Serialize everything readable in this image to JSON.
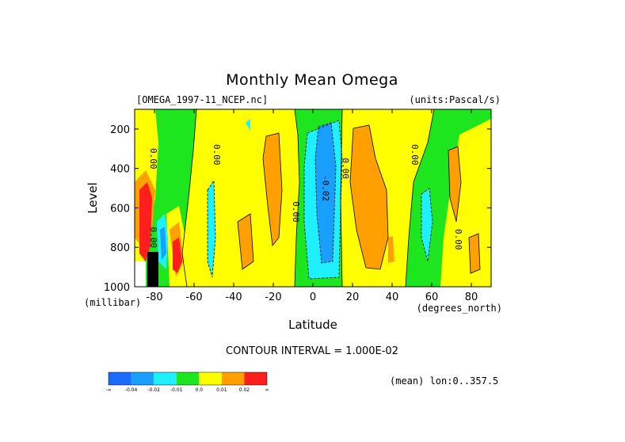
{
  "chart_data": {
    "type": "heatmap",
    "title": "Monthly Mean Omega",
    "file_label": "[OMEGA_1997-11_NCEP.nc]",
    "units_label": "(units:Pascal/s)",
    "ylabel": "Level",
    "ylabel_units": "(millibar)",
    "xlabel": "Latitude",
    "xlabel_units": "(degrees_north)",
    "xlim": [
      -90,
      90
    ],
    "ylim": [
      1000,
      100
    ],
    "y_reversed": true,
    "x_ticks": [
      -80,
      -60,
      -40,
      -20,
      0,
      20,
      40,
      60,
      80
    ],
    "x_tick_labels": [
      "-80",
      "-60",
      "-40",
      "-20",
      "0",
      "20",
      "40",
      "60",
      "80"
    ],
    "y_ticks": [
      200,
      400,
      600,
      800,
      1000
    ],
    "y_tick_labels": [
      "200",
      "400",
      "600",
      "800",
      "1000"
    ],
    "contour_interval_text": "CONTOUR INTERVAL = 1.000E-02",
    "mean_text": "(mean) lon:0..357.5",
    "colorbar": {
      "colors": [
        "#1a6cff",
        "#19a0ff",
        "#1ef0ff",
        "#1ee61e",
        "#ffff00",
        "#ffa000",
        "#ff1e1e"
      ],
      "labels": [
        "-∞",
        "-0.04",
        "-0.02",
        "-0.01",
        "0.0",
        "0.01",
        "0.02",
        "∞"
      ]
    },
    "contour_labels": [
      {
        "text": "0.00",
        "lat": -82,
        "level": 350
      },
      {
        "text": "0.00",
        "lat": -50,
        "level": 330
      },
      {
        "text": "0.00",
        "lat": -10,
        "level": 620
      },
      {
        "text": "-0.02",
        "lat": 5,
        "level": 500
      },
      {
        "text": "0.00",
        "lat": 15,
        "level": 400
      },
      {
        "text": "0.00",
        "lat": 50,
        "level": 330
      },
      {
        "text": "0.00",
        "lat": 72,
        "level": 760
      },
      {
        "text": "0.00",
        "lat": -82,
        "level": 750
      }
    ],
    "bands": [
      {
        "range": [
          -90,
          -82
        ],
        "class": "0.01 to 0.02 / >0.02"
      },
      {
        "range": [
          -80,
          -70
        ],
        "class": "-0.04 to 0.01 mixed"
      },
      {
        "range": [
          -70,
          -60
        ],
        "class": "0.0 to 0.01"
      },
      {
        "range": [
          -58,
          -52
        ],
        "class": "-0.02 to -0.01"
      },
      {
        "range": [
          -40,
          -20
        ],
        "class": "0.0 to 0.01"
      },
      {
        "range": [
          -10,
          16
        ],
        "class": "-0.04 to -0.01"
      },
      {
        "range": [
          18,
          40
        ],
        "class": "0.0 to 0.01"
      },
      {
        "range": [
          52,
          62
        ],
        "class": "-0.02 to -0.01"
      },
      {
        "range": [
          68,
          90
        ],
        "class": "0.0 to 0.01"
      }
    ]
  }
}
